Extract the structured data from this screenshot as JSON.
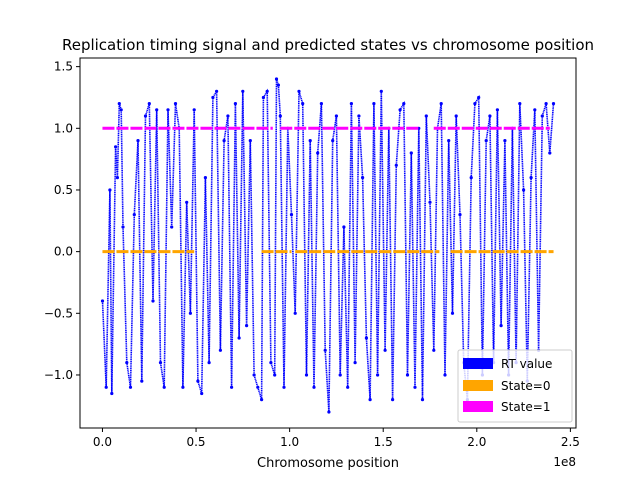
{
  "chart_data": {
    "type": "scatter",
    "title": "Replication timing signal and predicted states vs chromosome position",
    "xlabel": "Chromosome position",
    "ylabel": "",
    "x_offset_label": "1e8",
    "xlim": [
      -12000000,
      253000000
    ],
    "ylim": [
      -1.43,
      1.57
    ],
    "x_ticks": [
      0,
      50000000,
      100000000,
      150000000,
      200000000,
      250000000
    ],
    "x_tick_labels": [
      "0.0",
      "0.5",
      "1.0",
      "1.5",
      "2.0",
      "2.5"
    ],
    "y_ticks": [
      -1.0,
      -0.5,
      0.0,
      0.5,
      1.0,
      1.5
    ],
    "y_tick_labels": [
      "−1.0",
      "−0.5",
      "0.0",
      "0.5",
      "1.0",
      "1.5"
    ],
    "grid": false,
    "legend_placement": "lower-right",
    "series": [
      {
        "name": "RT value",
        "color": "#0000ff",
        "marker": "dot",
        "x": [
          0,
          2000000,
          4000000,
          5000000,
          7000000,
          8000000,
          9000000,
          10000000,
          11000000,
          13000000,
          15000000,
          17000000,
          19000000,
          21000000,
          23000000,
          25000000,
          27000000,
          29000000,
          31000000,
          33000000,
          35000000,
          37000000,
          39000000,
          41000000,
          43000000,
          45000000,
          47000000,
          49000000,
          51000000,
          53000000,
          55000000,
          57000000,
          59000000,
          61000000,
          63000000,
          65000000,
          67000000,
          69000000,
          71000000,
          73000000,
          75000000,
          77000000,
          79000000,
          81000000,
          83000000,
          85000000,
          86000000,
          88000000,
          90000000,
          92000000,
          93000000,
          94000000,
          95000000,
          97000000,
          99000000,
          101000000,
          103000000,
          105000000,
          107000000,
          109000000,
          111000000,
          113000000,
          115000000,
          117000000,
          119000000,
          121000000,
          123000000,
          125000000,
          127000000,
          129000000,
          131000000,
          133000000,
          135000000,
          137000000,
          139000000,
          141000000,
          143000000,
          145000000,
          147000000,
          149000000,
          151000000,
          153000000,
          155000000,
          157000000,
          159000000,
          161000000,
          163000000,
          165000000,
          167000000,
          169000000,
          171000000,
          173000000,
          175000000,
          177000000,
          179000000,
          181000000,
          183000000,
          185000000,
          187000000,
          189000000,
          191000000,
          193000000,
          195000000,
          197000000,
          199000000,
          201000000,
          203000000,
          205000000,
          207000000,
          209000000,
          211000000,
          213000000,
          215000000,
          217000000,
          219000000,
          221000000,
          223000000,
          225000000,
          227000000,
          229000000,
          231000000,
          233000000,
          235000000,
          237000000,
          239000000,
          241000000
        ],
        "y": [
          -0.4,
          -1.1,
          0.5,
          -1.15,
          0.85,
          0.6,
          1.2,
          1.15,
          0.2,
          -0.9,
          -1.1,
          0.3,
          0.9,
          -1.05,
          1.1,
          1.2,
          -0.4,
          1.15,
          -0.9,
          -1.1,
          1.15,
          0.2,
          1.2,
          1.0,
          -1.1,
          0.4,
          -0.5,
          1.15,
          -1.05,
          -1.15,
          0.6,
          -0.9,
          1.25,
          1.3,
          -0.8,
          0.9,
          1.1,
          -1.1,
          1.2,
          -0.7,
          1.3,
          -0.6,
          0.9,
          -1.0,
          -1.1,
          -1.2,
          1.25,
          1.3,
          -0.9,
          -1.0,
          1.4,
          1.35,
          1.1,
          -1.1,
          1.0,
          0.3,
          -0.5,
          1.3,
          1.2,
          -1.0,
          0.9,
          -1.1,
          0.8,
          1.2,
          -0.8,
          -1.3,
          0.9,
          1.1,
          -1.0,
          0.2,
          -1.1,
          1.2,
          -0.9,
          1.1,
          0.6,
          -0.7,
          -1.2,
          1.2,
          -1.0,
          1.3,
          -0.8,
          1.0,
          -1.2,
          0.7,
          1.15,
          1.2,
          -1.0,
          0.8,
          -1.1,
          1.0,
          -1.2,
          1.1,
          0.4,
          -0.8,
          1.0,
          1.2,
          -1.0,
          0.9,
          -0.5,
          1.1,
          0.3,
          -0.9,
          -1.2,
          0.6,
          1.2,
          1.25,
          -1.0,
          0.9,
          1.1,
          -0.9,
          1.15,
          -0.6,
          0.9,
          -1.0,
          1.0,
          -0.9,
          1.2,
          0.5,
          -1.05,
          0.6,
          1.15,
          -0.8,
          1.1,
          1.2,
          0.8,
          1.2
        ]
      },
      {
        "name": "State=0",
        "color": "#ffa500",
        "segments": [
          [
            0,
            49000000
          ],
          [
            85000000,
            101000000
          ],
          [
            103000000,
            180000000
          ],
          [
            186000000,
            241000000
          ]
        ],
        "y": 0
      },
      {
        "name": "State=1",
        "color": "#ff00ff",
        "segments": [
          [
            0,
            91000000
          ],
          [
            95000000,
            169000000
          ],
          [
            177000000,
            239000000
          ]
        ],
        "y": 1
      }
    ]
  }
}
